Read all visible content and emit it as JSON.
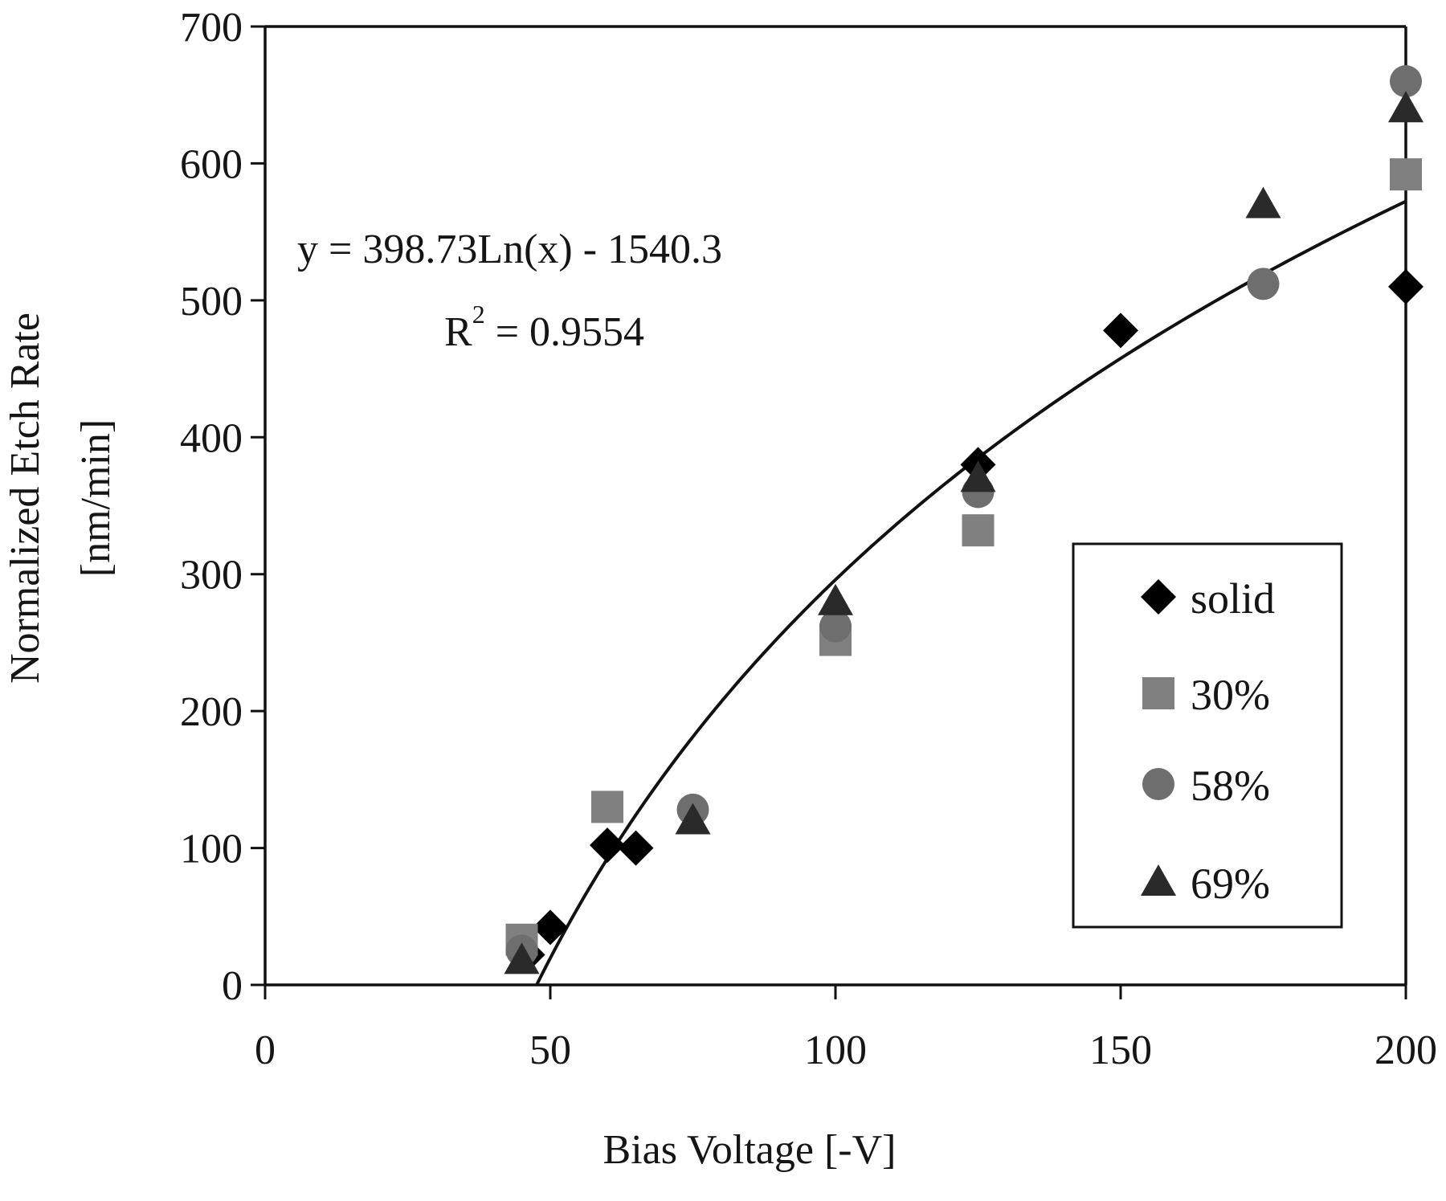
{
  "chart_data": {
    "type": "scatter",
    "title": "",
    "xlabel": "Bias Voltage [-V]",
    "ylabel_lines": [
      "Normalized Etch Rate",
      "[nm/min]"
    ],
    "xlim": [
      0,
      200
    ],
    "ylim": [
      0,
      700
    ],
    "x_ticks": [
      0,
      50,
      100,
      150,
      200
    ],
    "y_ticks": [
      0,
      100,
      200,
      300,
      400,
      500,
      600,
      700
    ],
    "grid": false,
    "legend_position": "bottom-right",
    "series": [
      {
        "name": "solid",
        "marker": "diamond",
        "color": "#000000",
        "points": [
          [
            46,
            22
          ],
          [
            50,
            42
          ],
          [
            60,
            102
          ],
          [
            65,
            100
          ],
          [
            125,
            380
          ],
          [
            150,
            478
          ],
          [
            200,
            510
          ]
        ]
      },
      {
        "name": "30%",
        "marker": "square",
        "color": "#808080",
        "points": [
          [
            45,
            33
          ],
          [
            60,
            130
          ],
          [
            100,
            252
          ],
          [
            125,
            332
          ],
          [
            200,
            592
          ]
        ]
      },
      {
        "name": "58%",
        "marker": "circle",
        "color": "#6e6e6e",
        "points": [
          [
            45,
            25
          ],
          [
            75,
            128
          ],
          [
            100,
            262
          ],
          [
            125,
            360
          ],
          [
            175,
            512
          ],
          [
            200,
            660
          ]
        ]
      },
      {
        "name": "69%",
        "marker": "triangle",
        "color": "#2a2a2a",
        "points": [
          [
            45,
            18
          ],
          [
            75,
            120
          ],
          [
            100,
            280
          ],
          [
            125,
            370
          ],
          [
            175,
            570
          ],
          [
            200,
            640
          ]
        ]
      }
    ],
    "trendline": {
      "type": "log",
      "a": 398.73,
      "b": -1540.3,
      "equation": "y = 398.73Ln(x) - 1540.3",
      "r2_prefix": "R",
      "r2_sup": "2",
      "r2_value": " = 0.9554"
    }
  }
}
